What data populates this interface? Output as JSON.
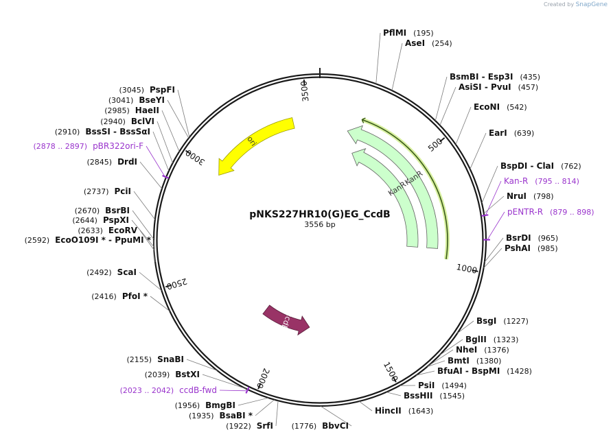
{
  "credit": {
    "created_by": "Created by",
    "brand": "SnapGene"
  },
  "plasmid": {
    "name": "pNKS227HR10(G)EG_CcdB",
    "size_label": "3556 bp",
    "length": 3556
  },
  "colors": {
    "backbone": "#1a1a1a",
    "kanr_fill": "#ccffcc",
    "kanr_stroke": "#606060",
    "ori_fill": "#ffff00",
    "ccdb_fill": "#993366",
    "primer": "#9933cc",
    "label_line": "#7a7a7a",
    "orf_line": "#3a5a1a",
    "orf_glow": "#d8f0a0"
  },
  "ticks": [
    {
      "pos": 500,
      "label": "500"
    },
    {
      "pos": 1000,
      "label": "1000"
    },
    {
      "pos": 1500,
      "label": "1500"
    },
    {
      "pos": 2000,
      "label": "2000"
    },
    {
      "pos": 2500,
      "label": "2500"
    },
    {
      "pos": 3000,
      "label": "3000"
    },
    {
      "pos": 3500,
      "label": "3500"
    }
  ],
  "features": [
    {
      "name": "KanR",
      "type": "cds",
      "label": "KanR",
      "start": 180,
      "end": 975,
      "direction": "reverse",
      "ring": 2
    },
    {
      "name": "KanR",
      "type": "cds",
      "label": "KanR",
      "start": 180,
      "end": 975,
      "direction": "reverse",
      "ring": 3
    },
    {
      "name": "ori",
      "type": "origin",
      "label": "ori",
      "start": 2990,
      "end": 3430,
      "direction": "reverse",
      "ring": 1
    },
    {
      "name": "ccdB",
      "type": "cds",
      "label": "ccdB",
      "start": 1845,
      "end": 2150,
      "direction": "reverse",
      "ring": 5
    }
  ],
  "orf": {
    "start": 185,
    "end": 980,
    "direction": "reverse"
  },
  "site_labels": [
    {
      "name": "PflMI",
      "pos_text": "(195)",
      "pos": 195,
      "side": "right"
    },
    {
      "name": "AseI",
      "pos_text": "(254)",
      "pos": 254,
      "side": "right"
    },
    {
      "name": "BsmBI - Esp3I",
      "pos_text": "(435)",
      "pos": 435,
      "side": "right"
    },
    {
      "name": "AsiSI - PvuI",
      "pos_text": "(457)",
      "pos": 457,
      "side": "right"
    },
    {
      "name": "EcoNI",
      "pos_text": "(542)",
      "pos": 542,
      "side": "right"
    },
    {
      "name": "EarI",
      "pos_text": "(639)",
      "pos": 639,
      "side": "right"
    },
    {
      "name": "BspDI - ClaI",
      "pos_text": "(762)",
      "pos": 762,
      "side": "right"
    },
    {
      "name": "Kan-R",
      "pos_text": "(795 .. 814)",
      "pos": 805,
      "side": "right",
      "primer": true
    },
    {
      "name": "NruI",
      "pos_text": "(798)",
      "pos": 798,
      "side": "right"
    },
    {
      "name": "pENTR-R",
      "pos_text": "(879 .. 898)",
      "pos": 888,
      "side": "right",
      "primer": true
    },
    {
      "name": "BsrDI",
      "pos_text": "(965)",
      "pos": 965,
      "side": "right"
    },
    {
      "name": "PshAI",
      "pos_text": "(985)",
      "pos": 985,
      "side": "right"
    },
    {
      "name": "BsgI",
      "pos_text": "(1227)",
      "pos": 1227,
      "side": "right"
    },
    {
      "name": "BglII",
      "pos_text": "(1323)",
      "pos": 1323,
      "side": "right"
    },
    {
      "name": "NheI",
      "pos_text": "(1376)",
      "pos": 1376,
      "side": "right"
    },
    {
      "name": "BmtI",
      "pos_text": "(1380)",
      "pos": 1380,
      "side": "right"
    },
    {
      "name": "BfuAI - BspMI",
      "pos_text": "(1428)",
      "pos": 1428,
      "side": "right"
    },
    {
      "name": "PsiI",
      "pos_text": "(1494)",
      "pos": 1494,
      "side": "right"
    },
    {
      "name": "BssHII",
      "pos_text": "(1545)",
      "pos": 1545,
      "side": "right"
    },
    {
      "name": "HincII",
      "pos_text": "(1643)",
      "pos": 1643,
      "side": "right"
    },
    {
      "name": "BbvCI",
      "pos_text": "(1776)",
      "pos": 1776,
      "side": "left"
    },
    {
      "name": "SrfI",
      "pos_text": "(1922)",
      "pos": 1922,
      "side": "left"
    },
    {
      "name": "BsaBI *",
      "pos_text": "(1935)",
      "pos": 1935,
      "side": "left"
    },
    {
      "name": "BmgBI",
      "pos_text": "(1956)",
      "pos": 1956,
      "side": "left"
    },
    {
      "name": "ccdB-fwd",
      "pos_text": "(2023 .. 2042)",
      "pos": 2032,
      "side": "left",
      "primer": true
    },
    {
      "name": "BstXI",
      "pos_text": "(2039)",
      "pos": 2039,
      "side": "left"
    },
    {
      "name": "SnaBI",
      "pos_text": "(2155)",
      "pos": 2155,
      "side": "left"
    },
    {
      "name": "PfoI *",
      "pos_text": "(2416)",
      "pos": 2416,
      "side": "left"
    },
    {
      "name": "ScaI",
      "pos_text": "(2492)",
      "pos": 2492,
      "side": "left"
    },
    {
      "name": "EcoO109I * - PpuMI *",
      "pos_text": "(2592)",
      "pos": 2592,
      "side": "left"
    },
    {
      "name": "EcoRV",
      "pos_text": "(2633)",
      "pos": 2633,
      "side": "left"
    },
    {
      "name": "PspXI",
      "pos_text": "(2644)",
      "pos": 2644,
      "side": "left"
    },
    {
      "name": "BsrBI",
      "pos_text": "(2670)",
      "pos": 2670,
      "side": "left"
    },
    {
      "name": "PciI",
      "pos_text": "(2737)",
      "pos": 2737,
      "side": "left"
    },
    {
      "name": "DrdI",
      "pos_text": "(2845)",
      "pos": 2845,
      "side": "left"
    },
    {
      "name": "pBR322ori-F",
      "pos_text": "(2878 .. 2897)",
      "pos": 2887,
      "side": "left",
      "primer": true
    },
    {
      "name": "BssSI - BssSαI",
      "pos_text": "(2910)",
      "pos": 2910,
      "side": "left"
    },
    {
      "name": "BclVI",
      "pos_text": "(2940)",
      "pos": 2940,
      "side": "left"
    },
    {
      "name": "HaeII",
      "pos_text": "(2985)",
      "pos": 2985,
      "side": "left"
    },
    {
      "name": "BseYI",
      "pos_text": "(3041)",
      "pos": 3041,
      "side": "left"
    },
    {
      "name": "PspFI",
      "pos_text": "(3045)",
      "pos": 3045,
      "side": "left"
    }
  ]
}
